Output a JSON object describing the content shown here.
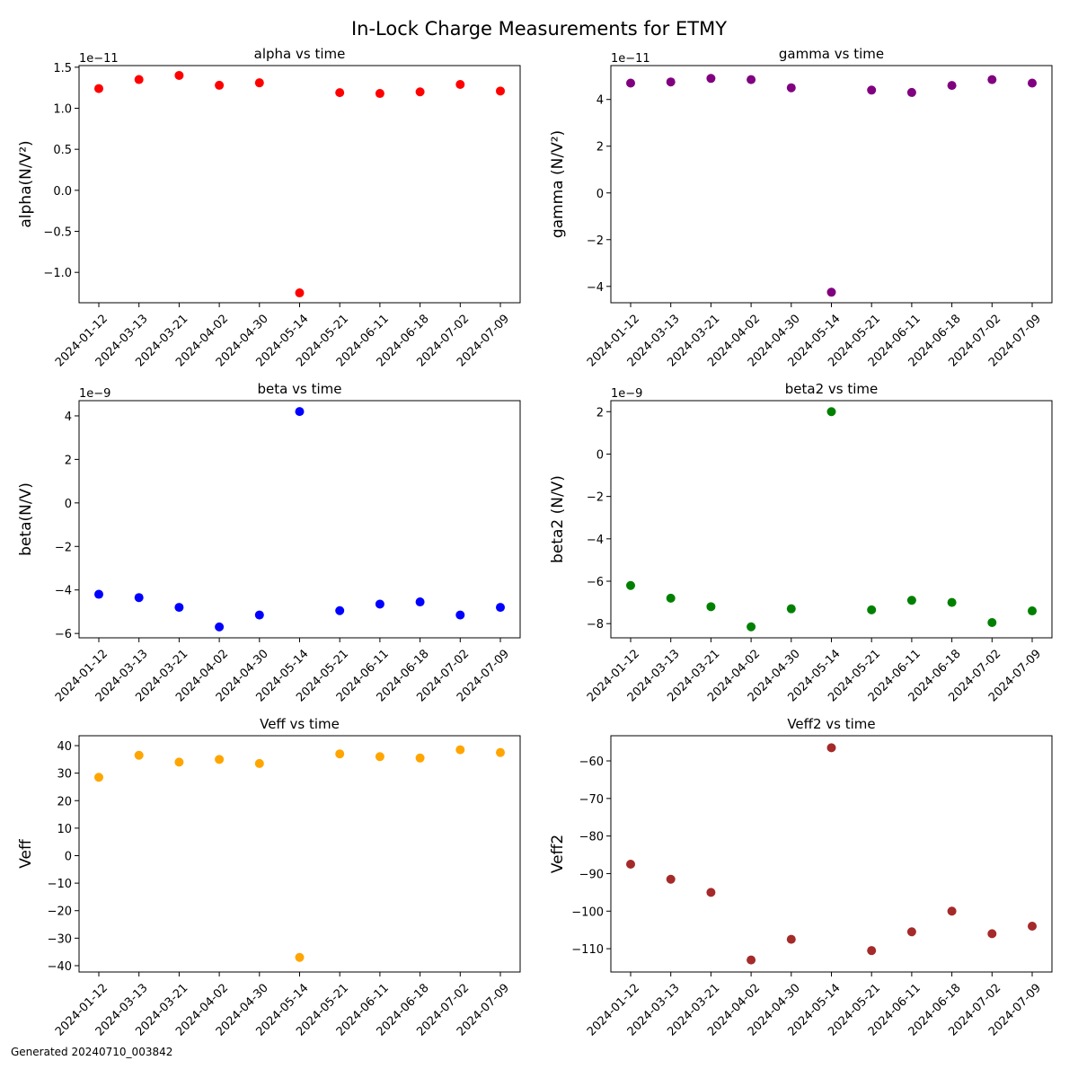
{
  "figure": {
    "title": "In-Lock Charge Measurements for ETMY",
    "footer": "Generated 20240710_003842"
  },
  "chart_data": [
    {
      "type": "scatter",
      "title": "alpha vs time",
      "xlabel": "",
      "ylabel": "alpha(N/V²)",
      "offset_text": "1e−11",
      "color": "#ff0000",
      "x": [
        "2024-01-12",
        "2024-03-13",
        "2024-03-21",
        "2024-04-02",
        "2024-04-30",
        "2024-05-14",
        "2024-05-21",
        "2024-06-11",
        "2024-06-18",
        "2024-07-02",
        "2024-07-09"
      ],
      "values": [
        1.24,
        1.35,
        1.4,
        1.28,
        1.31,
        -1.25,
        1.19,
        1.18,
        1.2,
        1.29,
        1.21
      ],
      "ylim": [
        -1.37,
        1.52
      ],
      "yticks": [
        -1.0,
        -0.5,
        0.0,
        0.5,
        1.0,
        1.5
      ],
      "ytick_labels": [
        "−1.0",
        "−0.5",
        "0.0",
        "0.5",
        "1.0",
        "1.5"
      ],
      "grid": false
    },
    {
      "type": "scatter",
      "title": "gamma vs time",
      "xlabel": "",
      "ylabel": "gamma (N/V²)",
      "offset_text": "1e−11",
      "color": "#800080",
      "x": [
        "2024-01-12",
        "2024-03-13",
        "2024-03-21",
        "2024-04-02",
        "2024-04-30",
        "2024-05-14",
        "2024-05-21",
        "2024-06-11",
        "2024-06-18",
        "2024-07-02",
        "2024-07-09"
      ],
      "values": [
        4.7,
        4.75,
        4.9,
        4.85,
        4.5,
        -4.25,
        4.4,
        4.3,
        4.6,
        4.85,
        4.7
      ],
      "ylim": [
        -4.7,
        5.45
      ],
      "yticks": [
        -4,
        -2,
        0,
        2,
        4
      ],
      "ytick_labels": [
        "−4",
        "−2",
        "0",
        "2",
        "4"
      ],
      "grid": false
    },
    {
      "type": "scatter",
      "title": "beta vs time",
      "xlabel": "",
      "ylabel": "beta(N/V)",
      "offset_text": "1e−9",
      "color": "#0000ff",
      "x": [
        "2024-01-12",
        "2024-03-13",
        "2024-03-21",
        "2024-04-02",
        "2024-04-30",
        "2024-05-14",
        "2024-05-21",
        "2024-06-11",
        "2024-06-18",
        "2024-07-02",
        "2024-07-09"
      ],
      "values": [
        -4.2,
        -4.35,
        -4.8,
        -5.7,
        -5.15,
        4.2,
        -4.95,
        -4.65,
        -4.55,
        -5.15,
        -4.8
      ],
      "ylim": [
        -6.2,
        4.7
      ],
      "yticks": [
        -6,
        -4,
        -2,
        0,
        2,
        4
      ],
      "ytick_labels": [
        "−6",
        "−4",
        "−2",
        "0",
        "2",
        "4"
      ],
      "grid": false
    },
    {
      "type": "scatter",
      "title": "beta2 vs time",
      "xlabel": "",
      "ylabel": "beta2 (N/V)",
      "offset_text": "1e−9",
      "color": "#008000",
      "x": [
        "2024-01-12",
        "2024-03-13",
        "2024-03-21",
        "2024-04-02",
        "2024-04-30",
        "2024-05-14",
        "2024-05-21",
        "2024-06-11",
        "2024-06-18",
        "2024-07-02",
        "2024-07-09"
      ],
      "values": [
        -6.2,
        -6.8,
        -7.2,
        -8.15,
        -7.3,
        2.0,
        -7.35,
        -6.9,
        -7.0,
        -7.95,
        -7.4
      ],
      "ylim": [
        -8.67,
        2.52
      ],
      "yticks": [
        -8,
        -6,
        -4,
        -2,
        0,
        2
      ],
      "ytick_labels": [
        "−8",
        "−6",
        "−4",
        "−2",
        "0",
        "2"
      ],
      "grid": false
    },
    {
      "type": "scatter",
      "title": "Veff vs time",
      "xlabel": "",
      "ylabel": "Veff",
      "offset_text": "",
      "color": "#ffa500",
      "x": [
        "2024-01-12",
        "2024-03-13",
        "2024-03-21",
        "2024-04-02",
        "2024-04-30",
        "2024-05-14",
        "2024-05-21",
        "2024-06-11",
        "2024-06-18",
        "2024-07-02",
        "2024-07-09"
      ],
      "values": [
        28.5,
        36.5,
        34.0,
        35.0,
        33.5,
        -37.0,
        37.0,
        36.0,
        35.5,
        38.5,
        37.5
      ],
      "ylim": [
        -42.3,
        43.6
      ],
      "yticks": [
        -40,
        -30,
        -20,
        -10,
        0,
        10,
        20,
        30,
        40
      ],
      "ytick_labels": [
        "−40",
        "−30",
        "−20",
        "−10",
        "0",
        "10",
        "20",
        "30",
        "40"
      ],
      "grid": false
    },
    {
      "type": "scatter",
      "title": "Veff2 vs time",
      "xlabel": "",
      "ylabel": "Veff2",
      "offset_text": "",
      "color": "#a52a2a",
      "x": [
        "2024-01-12",
        "2024-03-13",
        "2024-03-21",
        "2024-04-02",
        "2024-04-30",
        "2024-05-14",
        "2024-05-21",
        "2024-06-11",
        "2024-06-18",
        "2024-07-02",
        "2024-07-09"
      ],
      "values": [
        -87.5,
        -91.5,
        -95.0,
        -113.0,
        -107.5,
        -56.5,
        -110.5,
        -105.5,
        -100.0,
        -106.0,
        -104.0
      ],
      "ylim": [
        -116.2,
        -53.3
      ],
      "yticks": [
        -110,
        -100,
        -90,
        -80,
        -70,
        -60
      ],
      "ytick_labels": [
        "−110",
        "−100",
        "−90",
        "−80",
        "−70",
        "−60"
      ],
      "grid": false
    }
  ]
}
